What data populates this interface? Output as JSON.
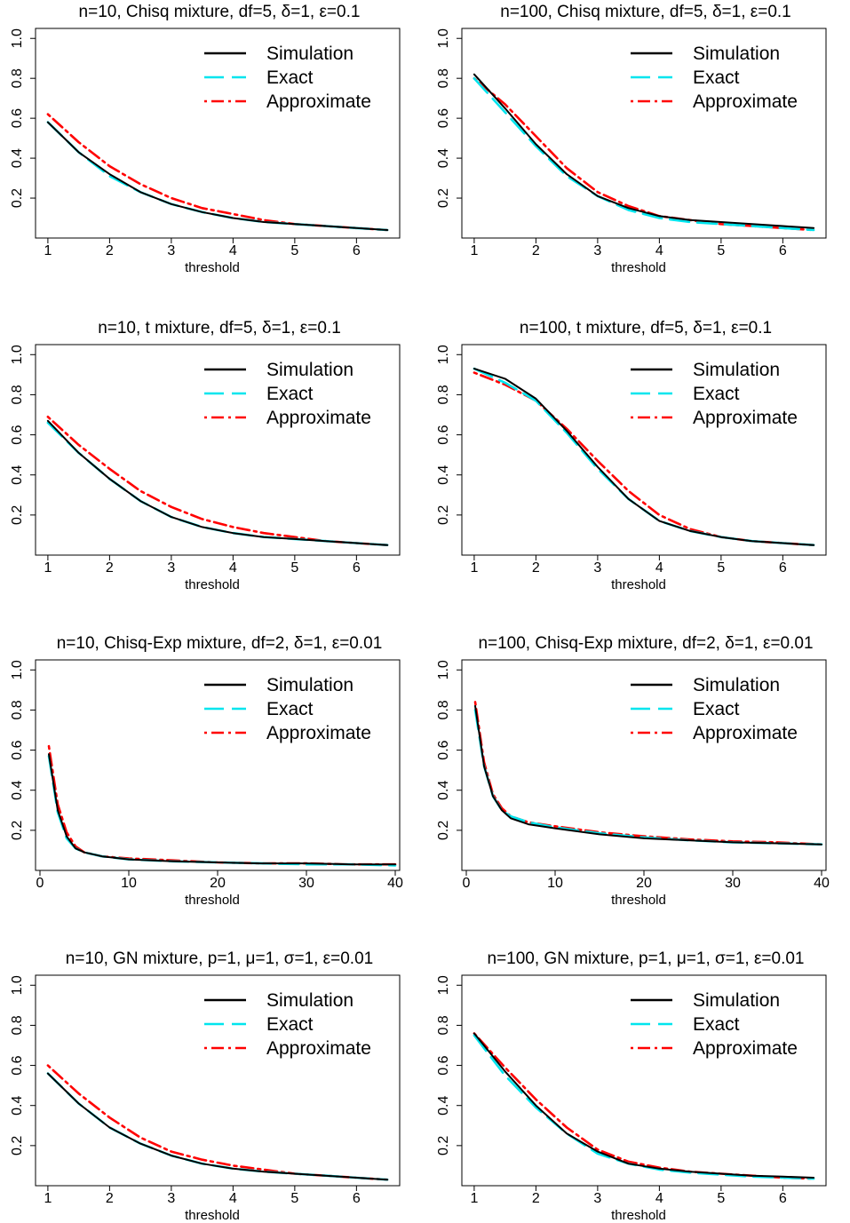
{
  "chart_data": [
    {
      "type": "line",
      "title": "n=10, Chisq mixture, df=5, δ=1, ε=0.1",
      "xlabel": "threshold",
      "ylabel": "",
      "xlim": [
        0.8,
        6.7
      ],
      "ylim": [
        0,
        1.05
      ],
      "xticks": [
        1,
        2,
        3,
        4,
        5,
        6
      ],
      "yticks": [
        0.2,
        0.4,
        0.6,
        0.8,
        1.0
      ],
      "ytick_labels": [
        "0.2",
        "0.4",
        "0.6",
        "0.8",
        "1.0"
      ],
      "legend_position": "top-right",
      "x": [
        1,
        1.5,
        2,
        2.5,
        3,
        3.5,
        4,
        4.5,
        5,
        5.5,
        6,
        6.5
      ],
      "series": [
        {
          "name": "Simulation",
          "color": "#000000",
          "dash": "solid",
          "values": [
            0.58,
            0.43,
            0.32,
            0.23,
            0.17,
            0.13,
            0.1,
            0.08,
            0.07,
            0.06,
            0.05,
            0.04
          ]
        },
        {
          "name": "Exact",
          "color": "#00e5ee",
          "dash": "dashed",
          "values": [
            0.58,
            0.43,
            0.31,
            0.23,
            0.17,
            0.13,
            0.1,
            0.08,
            0.07,
            0.06,
            0.05,
            0.04
          ]
        },
        {
          "name": "Approximate",
          "color": "#ff0000",
          "dash": "dotdash",
          "values": [
            0.62,
            0.48,
            0.36,
            0.27,
            0.2,
            0.15,
            0.12,
            0.09,
            0.07,
            0.06,
            0.05,
            0.04
          ]
        }
      ]
    },
    {
      "type": "line",
      "title": "n=100, Chisq mixture, df=5, δ=1, ε=0.1",
      "xlabel": "threshold",
      "ylabel": "",
      "xlim": [
        0.8,
        6.7
      ],
      "ylim": [
        0,
        1.05
      ],
      "xticks": [
        1,
        2,
        3,
        4,
        5,
        6
      ],
      "yticks": [
        0.2,
        0.4,
        0.6,
        0.8,
        1.0
      ],
      "ytick_labels": [
        "0.2",
        "0.4",
        "0.6",
        "0.8",
        "1.0"
      ],
      "legend_position": "top-right",
      "x": [
        1,
        1.5,
        2,
        2.5,
        3,
        3.5,
        4,
        4.5,
        5,
        5.5,
        6,
        6.5
      ],
      "series": [
        {
          "name": "Simulation",
          "color": "#000000",
          "dash": "solid",
          "values": [
            0.82,
            0.65,
            0.47,
            0.32,
            0.21,
            0.15,
            0.11,
            0.09,
            0.08,
            0.07,
            0.06,
            0.05
          ]
        },
        {
          "name": "Exact",
          "color": "#00e5ee",
          "dash": "dashed",
          "values": [
            0.8,
            0.63,
            0.46,
            0.31,
            0.21,
            0.14,
            0.1,
            0.08,
            0.07,
            0.06,
            0.05,
            0.04
          ]
        },
        {
          "name": "Approximate",
          "color": "#ff0000",
          "dash": "dotdash",
          "values": [
            0.8,
            0.67,
            0.51,
            0.35,
            0.23,
            0.16,
            0.11,
            0.09,
            0.07,
            0.06,
            0.05,
            0.04
          ]
        }
      ]
    },
    {
      "type": "line",
      "title": "n=10, t mixture, df=5, δ=1, ε=0.1",
      "xlabel": "threshold",
      "ylabel": "",
      "xlim": [
        0.8,
        6.7
      ],
      "ylim": [
        0,
        1.05
      ],
      "xticks": [
        1,
        2,
        3,
        4,
        5,
        6
      ],
      "yticks": [
        0.2,
        0.4,
        0.6,
        0.8,
        1.0
      ],
      "ytick_labels": [
        "0.2",
        "0.4",
        "0.6",
        "0.8",
        "1.0"
      ],
      "legend_position": "top-right",
      "x": [
        1,
        1.5,
        2,
        2.5,
        3,
        3.5,
        4,
        4.5,
        5,
        5.5,
        6,
        6.5
      ],
      "series": [
        {
          "name": "Simulation",
          "color": "#000000",
          "dash": "solid",
          "values": [
            0.67,
            0.51,
            0.38,
            0.27,
            0.19,
            0.14,
            0.11,
            0.09,
            0.08,
            0.07,
            0.06,
            0.05
          ]
        },
        {
          "name": "Exact",
          "color": "#00e5ee",
          "dash": "dashed",
          "values": [
            0.66,
            0.51,
            0.38,
            0.27,
            0.19,
            0.14,
            0.11,
            0.09,
            0.08,
            0.07,
            0.06,
            0.05
          ]
        },
        {
          "name": "Approximate",
          "color": "#ff0000",
          "dash": "dotdash",
          "values": [
            0.69,
            0.55,
            0.43,
            0.32,
            0.24,
            0.18,
            0.14,
            0.11,
            0.09,
            0.07,
            0.06,
            0.05
          ]
        }
      ]
    },
    {
      "type": "line",
      "title": "n=100, t mixture, df=5, δ=1, ε=0.1",
      "xlabel": "threshold",
      "ylabel": "",
      "xlim": [
        0.8,
        6.7
      ],
      "ylim": [
        0,
        1.05
      ],
      "xticks": [
        1,
        2,
        3,
        4,
        5,
        6
      ],
      "yticks": [
        0.2,
        0.4,
        0.6,
        0.8,
        1.0
      ],
      "ytick_labels": [
        "0.2",
        "0.4",
        "0.6",
        "0.8",
        "1.0"
      ],
      "legend_position": "top-right",
      "x": [
        1,
        1.5,
        2,
        2.5,
        3,
        3.5,
        4,
        4.5,
        5,
        5.5,
        6,
        6.5
      ],
      "series": [
        {
          "name": "Simulation",
          "color": "#000000",
          "dash": "solid",
          "values": [
            0.93,
            0.88,
            0.78,
            0.62,
            0.44,
            0.28,
            0.17,
            0.12,
            0.09,
            0.07,
            0.06,
            0.05
          ]
        },
        {
          "name": "Exact",
          "color": "#00e5ee",
          "dash": "dashed",
          "values": [
            0.93,
            0.86,
            0.77,
            0.61,
            0.43,
            0.28,
            0.17,
            0.12,
            0.09,
            0.07,
            0.06,
            0.05
          ]
        },
        {
          "name": "Approximate",
          "color": "#ff0000",
          "dash": "dotdash",
          "values": [
            0.91,
            0.85,
            0.77,
            0.63,
            0.47,
            0.32,
            0.2,
            0.13,
            0.09,
            0.07,
            0.06,
            0.05
          ]
        }
      ]
    },
    {
      "type": "line",
      "title": "n=10, Chisq-Exp mixture, df=2, δ=1, ε=0.01",
      "xlabel": "threshold",
      "ylabel": "",
      "xlim": [
        -0.5,
        40.5
      ],
      "ylim": [
        0,
        1.05
      ],
      "xticks": [
        0,
        10,
        20,
        30,
        40
      ],
      "yticks": [
        0.2,
        0.4,
        0.6,
        0.8,
        1.0
      ],
      "ytick_labels": [
        "0.2",
        "0.4",
        "0.6",
        "0.8",
        "1.0"
      ],
      "legend_position": "top-right",
      "x": [
        1,
        2,
        3,
        4,
        5,
        7,
        10,
        15,
        20,
        25,
        30,
        35,
        40
      ],
      "series": [
        {
          "name": "Simulation",
          "color": "#000000",
          "dash": "solid",
          "values": [
            0.58,
            0.3,
            0.17,
            0.11,
            0.09,
            0.07,
            0.055,
            0.045,
            0.04,
            0.035,
            0.035,
            0.03,
            0.03
          ]
        },
        {
          "name": "Exact",
          "color": "#00e5ee",
          "dash": "dashed",
          "values": [
            0.57,
            0.29,
            0.16,
            0.11,
            0.09,
            0.07,
            0.055,
            0.045,
            0.04,
            0.035,
            0.03,
            0.03,
            0.025
          ]
        },
        {
          "name": "Approximate",
          "color": "#ff0000",
          "dash": "dotdash",
          "values": [
            0.62,
            0.33,
            0.19,
            0.12,
            0.09,
            0.07,
            0.06,
            0.05,
            0.04,
            0.035,
            0.035,
            0.03,
            0.03
          ]
        }
      ]
    },
    {
      "type": "line",
      "title": "n=100, Chisq-Exp mixture, df=2, δ=1, ε=0.01",
      "xlabel": "threshold",
      "ylabel": "",
      "xlim": [
        -0.5,
        40.5
      ],
      "ylim": [
        0,
        1.05
      ],
      "xticks": [
        0,
        10,
        20,
        30,
        40
      ],
      "yticks": [
        0.2,
        0.4,
        0.6,
        0.8,
        1.0
      ],
      "ytick_labels": [
        "0.2",
        "0.4",
        "0.6",
        "0.8",
        "1.0"
      ],
      "legend_position": "top-right",
      "x": [
        1,
        2,
        3,
        4,
        5,
        7,
        10,
        15,
        20,
        25,
        30,
        35,
        40
      ],
      "series": [
        {
          "name": "Simulation",
          "color": "#000000",
          "dash": "solid",
          "values": [
            0.82,
            0.52,
            0.37,
            0.3,
            0.26,
            0.23,
            0.21,
            0.18,
            0.16,
            0.15,
            0.14,
            0.135,
            0.13
          ]
        },
        {
          "name": "Exact",
          "color": "#00e5ee",
          "dash": "dashed",
          "values": [
            0.8,
            0.52,
            0.37,
            0.3,
            0.27,
            0.24,
            0.215,
            0.185,
            0.165,
            0.15,
            0.14,
            0.135,
            0.13
          ]
        },
        {
          "name": "Approximate",
          "color": "#ff0000",
          "dash": "dotdash",
          "values": [
            0.84,
            0.54,
            0.38,
            0.31,
            0.27,
            0.24,
            0.22,
            0.19,
            0.17,
            0.155,
            0.145,
            0.14,
            0.13
          ]
        }
      ]
    },
    {
      "type": "line",
      "title": "n=10, GN mixture, p=1, μ=1, σ=1, ε=0.01",
      "xlabel": "threshold",
      "ylabel": "",
      "xlim": [
        0.8,
        6.7
      ],
      "ylim": [
        0,
        1.05
      ],
      "xticks": [
        1,
        2,
        3,
        4,
        5,
        6
      ],
      "yticks": [
        0.2,
        0.4,
        0.6,
        0.8,
        1.0
      ],
      "ytick_labels": [
        "0.2",
        "0.4",
        "0.6",
        "0.8",
        "1.0"
      ],
      "legend_position": "top-right",
      "x": [
        1,
        1.5,
        2,
        2.5,
        3,
        3.5,
        4,
        4.5,
        5,
        5.5,
        6,
        6.5
      ],
      "series": [
        {
          "name": "Simulation",
          "color": "#000000",
          "dash": "solid",
          "values": [
            0.56,
            0.41,
            0.29,
            0.21,
            0.15,
            0.11,
            0.085,
            0.07,
            0.06,
            0.05,
            0.04,
            0.03
          ]
        },
        {
          "name": "Exact",
          "color": "#00e5ee",
          "dash": "dashed",
          "values": [
            0.56,
            0.41,
            0.29,
            0.21,
            0.15,
            0.11,
            0.085,
            0.07,
            0.06,
            0.05,
            0.04,
            0.03
          ]
        },
        {
          "name": "Approximate",
          "color": "#ff0000",
          "dash": "dotdash",
          "values": [
            0.6,
            0.46,
            0.34,
            0.24,
            0.17,
            0.13,
            0.1,
            0.08,
            0.06,
            0.05,
            0.04,
            0.03
          ]
        }
      ]
    },
    {
      "type": "line",
      "title": "n=100, GN mixture, p=1, μ=1, σ=1, ε=0.01",
      "xlabel": "threshold",
      "ylabel": "",
      "xlim": [
        0.8,
        6.7
      ],
      "ylim": [
        0,
        1.05
      ],
      "xticks": [
        1,
        2,
        3,
        4,
        5,
        6
      ],
      "yticks": [
        0.2,
        0.4,
        0.6,
        0.8,
        1.0
      ],
      "ytick_labels": [
        "0.2",
        "0.4",
        "0.6",
        "0.8",
        "1.0"
      ],
      "legend_position": "top-right",
      "x": [
        1,
        1.5,
        2,
        2.5,
        3,
        3.5,
        4,
        4.5,
        5,
        5.5,
        6,
        6.5
      ],
      "series": [
        {
          "name": "Simulation",
          "color": "#000000",
          "dash": "solid",
          "values": [
            0.76,
            0.57,
            0.4,
            0.26,
            0.17,
            0.11,
            0.085,
            0.07,
            0.06,
            0.05,
            0.045,
            0.04
          ]
        },
        {
          "name": "Exact",
          "color": "#00e5ee",
          "dash": "dashed",
          "values": [
            0.75,
            0.55,
            0.39,
            0.26,
            0.16,
            0.11,
            0.08,
            0.065,
            0.055,
            0.045,
            0.04,
            0.035
          ]
        },
        {
          "name": "Approximate",
          "color": "#ff0000",
          "dash": "dotdash",
          "values": [
            0.76,
            0.59,
            0.43,
            0.29,
            0.18,
            0.12,
            0.09,
            0.07,
            0.06,
            0.05,
            0.04,
            0.035
          ]
        }
      ]
    }
  ]
}
